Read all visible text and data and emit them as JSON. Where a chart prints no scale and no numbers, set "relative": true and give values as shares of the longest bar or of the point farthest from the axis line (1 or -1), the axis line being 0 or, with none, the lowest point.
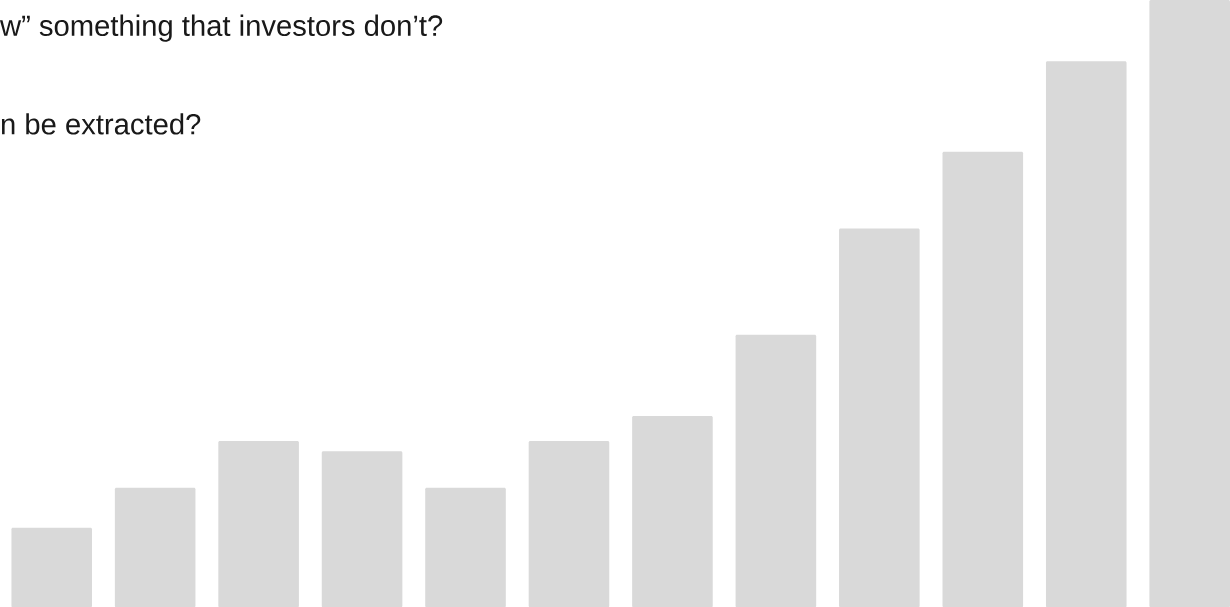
{
  "chart_data": {
    "type": "bar",
    "relative": true,
    "color": "#d9d9d9",
    "categories": [
      null,
      null,
      null,
      null,
      null,
      null,
      null,
      null,
      null,
      null,
      null,
      null
    ],
    "values": [
      0.131,
      0.197,
      0.274,
      0.257,
      0.197,
      0.274,
      0.315,
      0.449,
      0.624,
      0.75,
      0.899,
      1
    ],
    "annotations": [
      "w” something that investors don’t?",
      "n be extracted?"
    ]
  }
}
